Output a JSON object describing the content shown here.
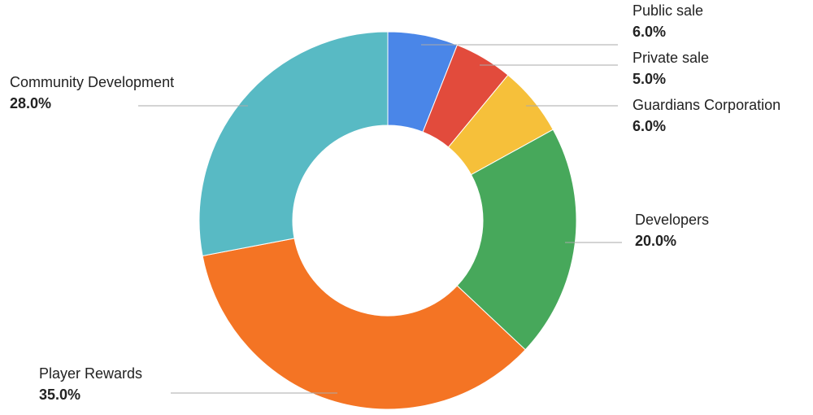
{
  "chart_data": {
    "type": "pie",
    "donut": true,
    "categories": [
      "Public sale",
      "Private sale",
      "Guardians Corporation",
      "Developers",
      "Player Rewards",
      "Community Development"
    ],
    "values": [
      6,
      5,
      6,
      20,
      35,
      28
    ],
    "value_labels": [
      "6.0%",
      "5.0%",
      "6.0%",
      "20.0%",
      "35.0%",
      "28.0%"
    ],
    "colors": [
      "#4a86e8",
      "#e24b3c",
      "#f6c03a",
      "#47a85b",
      "#f47424",
      "#58bac4"
    ]
  }
}
